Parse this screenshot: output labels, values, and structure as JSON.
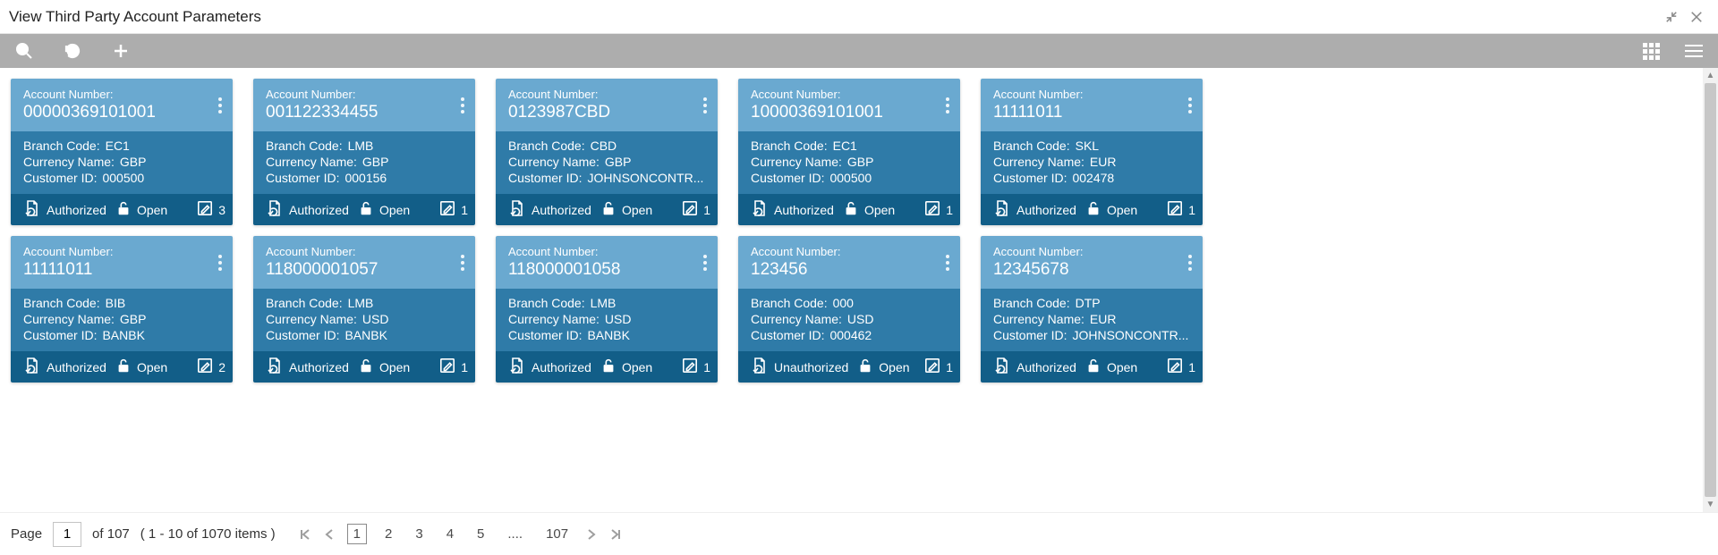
{
  "window": {
    "title": "View Third Party Account Parameters"
  },
  "labels": {
    "account_number": "Account Number:",
    "branch_code": "Branch Code:",
    "currency_name": "Currency Name:",
    "customer_id": "Customer ID:",
    "status_authorized": "Authorized",
    "status_unauthorized": "Unauthorized",
    "lock_open": "Open"
  },
  "colors": {
    "toolbar_bg": "#adadad",
    "card_head_bg": "#6aa9d0",
    "card_body_bg": "#2f7ba8",
    "card_foot_bg": "#125e88",
    "text_white": "#ffffff"
  },
  "cards": [
    {
      "account": "00000369101001",
      "branch": "EC1",
      "currency": "GBP",
      "customer": "000500",
      "status": "Authorized",
      "lock": "Open",
      "edits": "3"
    },
    {
      "account": "001122334455",
      "branch": "LMB",
      "currency": "GBP",
      "customer": "000156",
      "status": "Authorized",
      "lock": "Open",
      "edits": "1"
    },
    {
      "account": "0123987CBD",
      "branch": "CBD",
      "currency": "GBP",
      "customer": "JOHNSONCONTR...",
      "status": "Authorized",
      "lock": "Open",
      "edits": "1"
    },
    {
      "account": "10000369101001",
      "branch": "EC1",
      "currency": "GBP",
      "customer": "000500",
      "status": "Authorized",
      "lock": "Open",
      "edits": "1"
    },
    {
      "account": "11111011",
      "branch": "SKL",
      "currency": "EUR",
      "customer": "002478",
      "status": "Authorized",
      "lock": "Open",
      "edits": "1"
    },
    {
      "account": "11111011",
      "branch": "BIB",
      "currency": "GBP",
      "customer": "BANBK",
      "status": "Authorized",
      "lock": "Open",
      "edits": "2"
    },
    {
      "account": "118000001057",
      "branch": "LMB",
      "currency": "USD",
      "customer": "BANBK",
      "status": "Authorized",
      "lock": "Open",
      "edits": "1"
    },
    {
      "account": "118000001058",
      "branch": "LMB",
      "currency": "USD",
      "customer": "BANBK",
      "status": "Authorized",
      "lock": "Open",
      "edits": "1"
    },
    {
      "account": "123456",
      "branch": "000",
      "currency": "USD",
      "customer": "000462",
      "status": "Unauthorized",
      "lock": "Open",
      "edits": "1"
    },
    {
      "account": "12345678",
      "branch": "DTP",
      "currency": "EUR",
      "customer": "JOHNSONCONTR...",
      "status": "Authorized",
      "lock": "Open",
      "edits": "1"
    }
  ],
  "pager": {
    "label_page": "Page",
    "current_input": "1",
    "of_text": "of 107",
    "range_text": "( 1 - 10 of 1070 items )",
    "pages": [
      "1",
      "2",
      "3",
      "4",
      "5",
      "....",
      "107"
    ],
    "current_page": "1"
  }
}
